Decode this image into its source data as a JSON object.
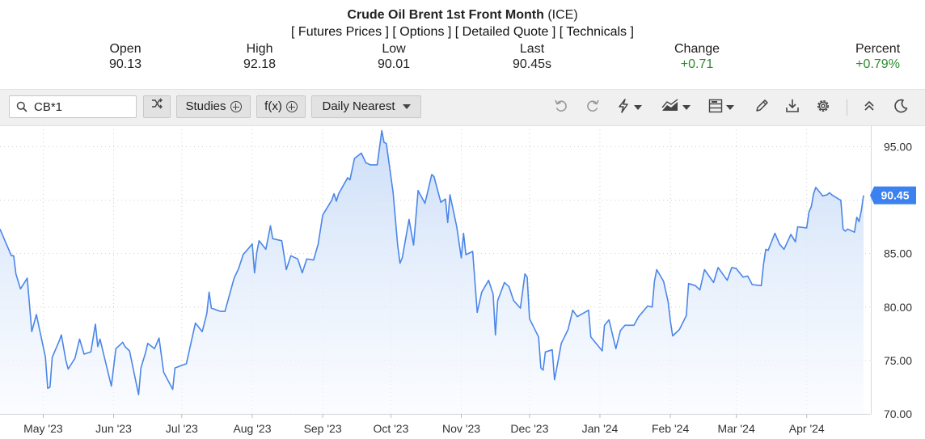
{
  "header": {
    "instrument": "Crude Oil Brent 1st Front Month",
    "exchange": "(ICE)",
    "links": [
      "[ Futures Prices ]",
      "[ Options ]",
      "[ Detailed Quote ]",
      "[ Technicals ]"
    ]
  },
  "quote": {
    "open": {
      "label": "Open",
      "value": "90.13"
    },
    "high": {
      "label": "High",
      "value": "92.18"
    },
    "low": {
      "label": "Low",
      "value": "90.01"
    },
    "last": {
      "label": "Last",
      "value": "90.45s"
    },
    "change": {
      "label": "Change",
      "value": "+0.71"
    },
    "percent": {
      "label": "Percent",
      "value": "+0.79%"
    }
  },
  "toolbar": {
    "symbol": "CB*1",
    "studies_label": "Studies",
    "fx_label": "f(x)",
    "interval_label": "Daily Nearest",
    "icons": [
      "search-icon",
      "shuffle-icon",
      "undo-icon",
      "redo-icon",
      "bolt-icon",
      "area-chart-icon",
      "layout-icon",
      "pencil-icon",
      "download-icon",
      "gear-icon",
      "collapse-icon",
      "moon-icon"
    ]
  },
  "colors": {
    "line": "#4a86e8",
    "fill_top": "#c9dcf7",
    "fill_bottom": "#f7faff",
    "last_badge": "#3b82f0",
    "positive": "#2e8b2e",
    "toolbar_bg": "#f0f0f0"
  },
  "chart_data": {
    "type": "area",
    "y_ticks": [
      "70.00",
      "75.00",
      "80.00",
      "85.00",
      "95.00"
    ],
    "ylim": [
      70,
      97
    ],
    "x_ticks": [
      {
        "label": "May '23",
        "date": "2023-05-01"
      },
      {
        "label": "Jun '23",
        "date": "2023-06-01"
      },
      {
        "label": "Jul '23",
        "date": "2023-07-01"
      },
      {
        "label": "Aug '23",
        "date": "2023-08-01"
      },
      {
        "label": "Sep '23",
        "date": "2023-09-01"
      },
      {
        "label": "Oct '23",
        "date": "2023-10-01"
      },
      {
        "label": "Nov '23",
        "date": "2023-11-01"
      },
      {
        "label": "Dec '23",
        "date": "2023-12-01"
      },
      {
        "label": "Jan '24",
        "date": "2024-01-01"
      },
      {
        "label": "Feb '24",
        "date": "2024-02-01"
      },
      {
        "label": "Mar '24",
        "date": "2024-03-01"
      },
      {
        "label": "Apr '24",
        "date": "2024-04-01"
      }
    ],
    "xlim": [
      "2023-04-12",
      "2024-04-26"
    ],
    "last_value": "90.45",
    "grid": true,
    "series": [
      {
        "points": [
          [
            "2023-04-12",
            87.3
          ],
          [
            "2023-04-14",
            86.3
          ],
          [
            "2023-04-17",
            84.8
          ],
          [
            "2023-04-18",
            84.8
          ],
          [
            "2023-04-19",
            83.1
          ],
          [
            "2023-04-21",
            81.7
          ],
          [
            "2023-04-24",
            82.7
          ],
          [
            "2023-04-26",
            77.7
          ],
          [
            "2023-04-27",
            78.5
          ],
          [
            "2023-04-28",
            79.3
          ],
          [
            "2023-05-02",
            75.3
          ],
          [
            "2023-05-03",
            72.4
          ],
          [
            "2023-05-04",
            72.5
          ],
          [
            "2023-05-05",
            75.3
          ],
          [
            "2023-05-08",
            76.8
          ],
          [
            "2023-05-09",
            77.4
          ],
          [
            "2023-05-11",
            75.0
          ],
          [
            "2023-05-12",
            74.2
          ],
          [
            "2023-05-15",
            75.2
          ],
          [
            "2023-05-17",
            77.0
          ],
          [
            "2023-05-19",
            75.6
          ],
          [
            "2023-05-22",
            75.8
          ],
          [
            "2023-05-24",
            78.4
          ],
          [
            "2023-05-25",
            76.3
          ],
          [
            "2023-05-26",
            77.0
          ],
          [
            "2023-05-31",
            72.6
          ],
          [
            "2023-06-02",
            76.1
          ],
          [
            "2023-06-05",
            76.7
          ],
          [
            "2023-06-06",
            76.3
          ],
          [
            "2023-06-08",
            75.9
          ],
          [
            "2023-06-12",
            71.8
          ],
          [
            "2023-06-13",
            74.3
          ],
          [
            "2023-06-15",
            75.7
          ],
          [
            "2023-06-16",
            76.6
          ],
          [
            "2023-06-19",
            76.1
          ],
          [
            "2023-06-21",
            77.1
          ],
          [
            "2023-06-23",
            73.9
          ],
          [
            "2023-06-27",
            72.3
          ],
          [
            "2023-06-28",
            74.3
          ],
          [
            "2023-07-03",
            74.7
          ],
          [
            "2023-07-05",
            76.6
          ],
          [
            "2023-07-07",
            78.5
          ],
          [
            "2023-07-10",
            77.7
          ],
          [
            "2023-07-12",
            79.4
          ],
          [
            "2023-07-13",
            81.4
          ],
          [
            "2023-07-14",
            79.9
          ],
          [
            "2023-07-18",
            79.6
          ],
          [
            "2023-07-20",
            79.6
          ],
          [
            "2023-07-24",
            82.7
          ],
          [
            "2023-07-26",
            83.6
          ],
          [
            "2023-07-28",
            84.9
          ],
          [
            "2023-08-01",
            85.9
          ],
          [
            "2023-08-02",
            83.2
          ],
          [
            "2023-08-03",
            85.1
          ],
          [
            "2023-08-04",
            86.2
          ],
          [
            "2023-08-07",
            85.4
          ],
          [
            "2023-08-09",
            87.6
          ],
          [
            "2023-08-10",
            86.4
          ],
          [
            "2023-08-14",
            86.2
          ],
          [
            "2023-08-16",
            83.5
          ],
          [
            "2023-08-18",
            84.8
          ],
          [
            "2023-08-21",
            84.5
          ],
          [
            "2023-08-23",
            83.2
          ],
          [
            "2023-08-25",
            84.5
          ],
          [
            "2023-08-28",
            84.4
          ],
          [
            "2023-08-30",
            85.9
          ],
          [
            "2023-09-01",
            88.6
          ],
          [
            "2023-09-05",
            90.0
          ],
          [
            "2023-09-06",
            90.6
          ],
          [
            "2023-09-07",
            89.9
          ],
          [
            "2023-09-08",
            90.6
          ],
          [
            "2023-09-12",
            92.1
          ],
          [
            "2023-09-13",
            91.9
          ],
          [
            "2023-09-15",
            93.9
          ],
          [
            "2023-09-18",
            94.4
          ],
          [
            "2023-09-20",
            93.5
          ],
          [
            "2023-09-22",
            93.3
          ],
          [
            "2023-09-25",
            93.3
          ],
          [
            "2023-09-27",
            96.5
          ],
          [
            "2023-09-28",
            95.4
          ],
          [
            "2023-09-29",
            95.3
          ],
          [
            "2023-10-02",
            90.7
          ],
          [
            "2023-10-04",
            85.8
          ],
          [
            "2023-10-05",
            84.1
          ],
          [
            "2023-10-06",
            84.6
          ],
          [
            "2023-10-09",
            88.2
          ],
          [
            "2023-10-11",
            85.8
          ],
          [
            "2023-10-13",
            90.9
          ],
          [
            "2023-10-16",
            89.7
          ],
          [
            "2023-10-18",
            91.5
          ],
          [
            "2023-10-19",
            92.4
          ],
          [
            "2023-10-20",
            92.2
          ],
          [
            "2023-10-23",
            89.8
          ],
          [
            "2023-10-25",
            90.1
          ],
          [
            "2023-10-26",
            87.9
          ],
          [
            "2023-10-27",
            90.5
          ],
          [
            "2023-10-30",
            87.5
          ],
          [
            "2023-11-01",
            84.6
          ],
          [
            "2023-11-02",
            86.9
          ],
          [
            "2023-11-03",
            84.9
          ],
          [
            "2023-11-06",
            85.2
          ],
          [
            "2023-11-08",
            79.5
          ],
          [
            "2023-11-10",
            81.4
          ],
          [
            "2023-11-13",
            82.5
          ],
          [
            "2023-11-15",
            81.2
          ],
          [
            "2023-11-16",
            77.4
          ],
          [
            "2023-11-17",
            80.6
          ],
          [
            "2023-11-20",
            82.3
          ],
          [
            "2023-11-22",
            81.9
          ],
          [
            "2023-11-24",
            80.6
          ],
          [
            "2023-11-27",
            79.9
          ],
          [
            "2023-11-29",
            83.1
          ],
          [
            "2023-11-30",
            82.8
          ],
          [
            "2023-12-01",
            78.9
          ],
          [
            "2023-12-05",
            77.2
          ],
          [
            "2023-12-06",
            74.3
          ],
          [
            "2023-12-07",
            74.1
          ],
          [
            "2023-12-08",
            75.8
          ],
          [
            "2023-12-11",
            76.0
          ],
          [
            "2023-12-12",
            73.2
          ],
          [
            "2023-12-13",
            74.3
          ],
          [
            "2023-12-15",
            76.6
          ],
          [
            "2023-12-18",
            77.9
          ],
          [
            "2023-12-20",
            79.7
          ],
          [
            "2023-12-22",
            79.1
          ],
          [
            "2023-12-27",
            79.7
          ],
          [
            "2023-12-28",
            77.2
          ],
          [
            "2024-01-02",
            75.9
          ],
          [
            "2024-01-03",
            78.3
          ],
          [
            "2024-01-05",
            78.8
          ],
          [
            "2024-01-08",
            76.1
          ],
          [
            "2024-01-10",
            77.8
          ],
          [
            "2024-01-12",
            78.3
          ],
          [
            "2024-01-16",
            78.3
          ],
          [
            "2024-01-18",
            79.1
          ],
          [
            "2024-01-22",
            80.1
          ],
          [
            "2024-01-24",
            80.0
          ],
          [
            "2024-01-25",
            82.4
          ],
          [
            "2024-01-26",
            83.5
          ],
          [
            "2024-01-29",
            82.4
          ],
          [
            "2024-01-31",
            80.5
          ],
          [
            "2024-02-01",
            78.7
          ],
          [
            "2024-02-02",
            77.3
          ],
          [
            "2024-02-05",
            77.9
          ],
          [
            "2024-02-08",
            79.2
          ],
          [
            "2024-02-09",
            82.2
          ],
          [
            "2024-02-12",
            82.0
          ],
          [
            "2024-02-14",
            81.6
          ],
          [
            "2024-02-16",
            83.5
          ],
          [
            "2024-02-20",
            82.3
          ],
          [
            "2024-02-22",
            83.7
          ],
          [
            "2024-02-26",
            82.5
          ],
          [
            "2024-02-28",
            83.7
          ],
          [
            "2024-03-01",
            83.6
          ],
          [
            "2024-03-04",
            82.8
          ],
          [
            "2024-03-06",
            82.9
          ],
          [
            "2024-03-08",
            82.1
          ],
          [
            "2024-03-12",
            82.0
          ],
          [
            "2024-03-13",
            84.0
          ],
          [
            "2024-03-14",
            85.4
          ],
          [
            "2024-03-15",
            85.3
          ],
          [
            "2024-03-18",
            86.9
          ],
          [
            "2024-03-20",
            85.9
          ],
          [
            "2024-03-22",
            85.4
          ],
          [
            "2024-03-25",
            86.8
          ],
          [
            "2024-03-27",
            86.1
          ],
          [
            "2024-03-28",
            87.5
          ],
          [
            "2024-04-01",
            87.4
          ],
          [
            "2024-04-02",
            88.9
          ],
          [
            "2024-04-03",
            89.4
          ],
          [
            "2024-04-04",
            90.6
          ],
          [
            "2024-04-05",
            91.2
          ],
          [
            "2024-04-08",
            90.4
          ],
          [
            "2024-04-10",
            90.5
          ],
          [
            "2024-04-11",
            90.7
          ],
          [
            "2024-04-12",
            90.5
          ],
          [
            "2024-04-15",
            90.1
          ],
          [
            "2024-04-16",
            90.0
          ],
          [
            "2024-04-17",
            87.3
          ],
          [
            "2024-04-18",
            87.1
          ],
          [
            "2024-04-19",
            87.3
          ],
          [
            "2024-04-22",
            87.0
          ],
          [
            "2024-04-23",
            88.4
          ],
          [
            "2024-04-24",
            88.0
          ],
          [
            "2024-04-25",
            89.0
          ],
          [
            "2024-04-26",
            90.45
          ]
        ]
      }
    ]
  }
}
